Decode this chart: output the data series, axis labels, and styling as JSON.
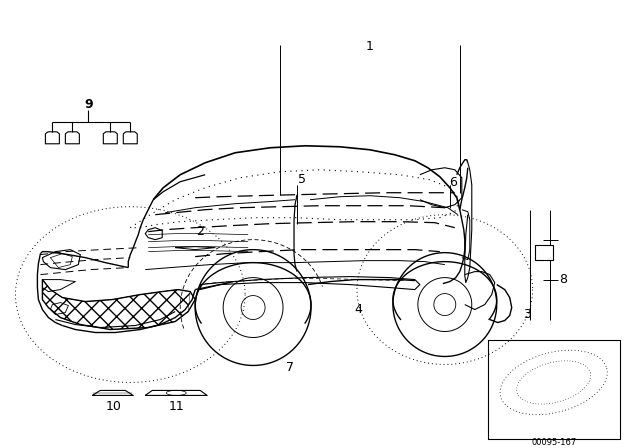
{
  "background_color": "#ffffff",
  "lc": "#000000",
  "fig_width": 6.4,
  "fig_height": 4.48,
  "dpi": 100,
  "footnote": "00095-167",
  "xlim": [
    0,
    640
  ],
  "ylim": [
    0,
    448
  ],
  "part1_label": "1",
  "part2_label": "2",
  "part3_label": "3",
  "part4_label": "4",
  "part5_label": "5",
  "part6_label": "6",
  "part7_label": "7",
  "part8_label": "8",
  "part9_label": "9",
  "part10_label": "10",
  "part11_label": "11"
}
